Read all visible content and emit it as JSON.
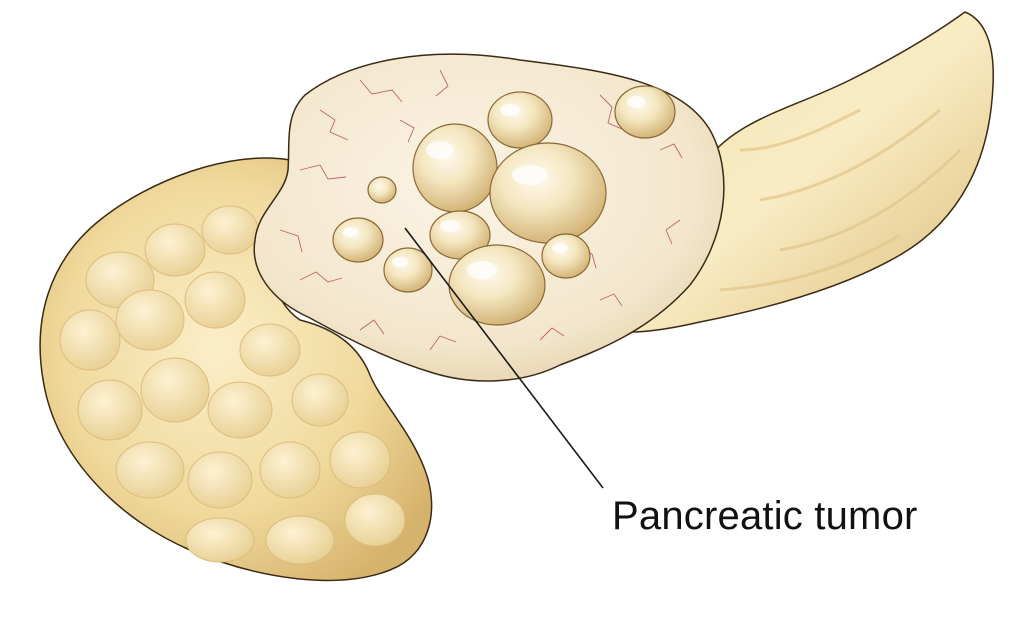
{
  "annotation": {
    "label": "Pancreatic tumor"
  },
  "colors": {
    "background": "#ffffff",
    "tissue": "#f3dfa8",
    "tissue_shadow": "#d9b874",
    "tumor": "#f7ecd9",
    "cyst": "#efe0b2",
    "vessel": "#b0364a",
    "outline": "#2a1d10",
    "leader_line": "#1a1a1a"
  }
}
